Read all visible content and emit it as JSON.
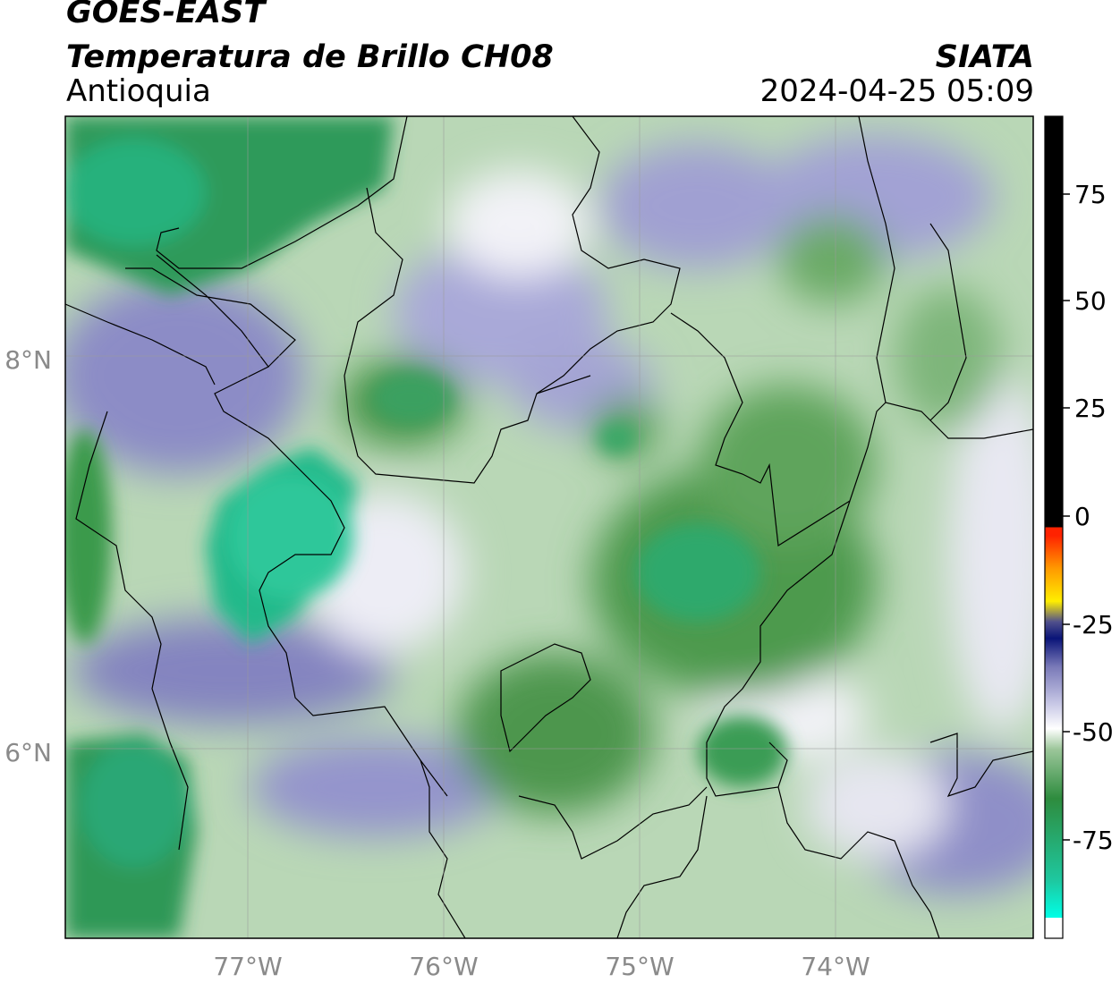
{
  "header": {
    "satellite": "GOES-EAST",
    "product": "Temperatura de Brillo CH08",
    "region": "Antioquia",
    "agency": "SIATA",
    "datetime": "2024-04-25 05:09"
  },
  "map": {
    "lat_labels": [
      "8°N",
      "6°N"
    ],
    "lon_labels": [
      "77°W",
      "76°W",
      "75°W",
      "74°W"
    ]
  },
  "colorbar": {
    "ticks": [
      "75",
      "50",
      "25",
      "0",
      "-25",
      "-50",
      "-75"
    ],
    "colors": {
      "hot": "#000000",
      "red": "#ff2200",
      "orange": "#ff9900",
      "yellow": "#ffee00",
      "dark_blue": "#0a1478",
      "lavender": "#8c8cc8",
      "white": "#ffffff",
      "green": "#3c8c3c",
      "teal": "#1ec8a0",
      "cyan": "#00ffe6"
    }
  }
}
